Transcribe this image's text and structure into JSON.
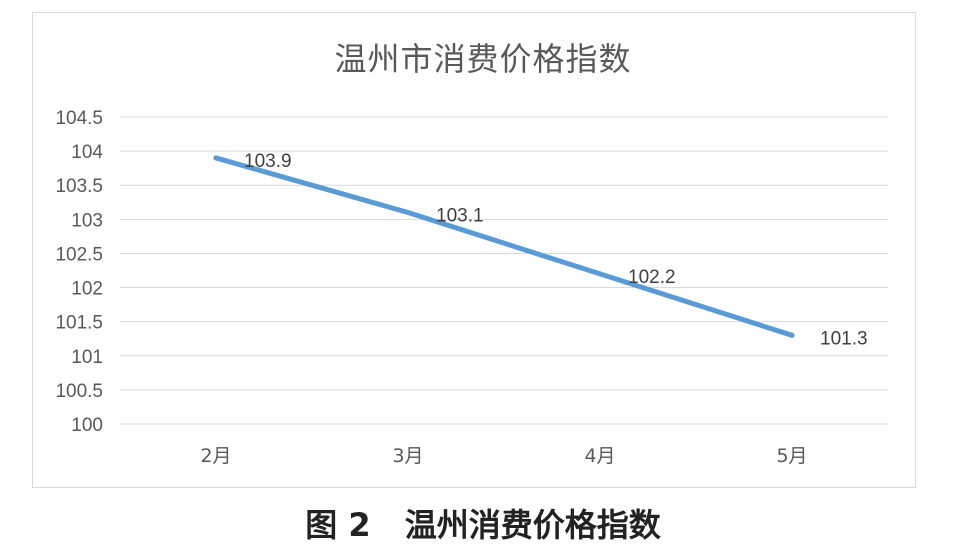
{
  "figure_caption": {
    "number": "图 2",
    "text": "温州消费价格指数"
  },
  "chart_data": {
    "type": "line",
    "title": "温州市消费价格指数",
    "xlabel": "",
    "ylabel": "",
    "categories": [
      "2月",
      "3月",
      "4月",
      "5月"
    ],
    "series": [
      {
        "values": [
          103.9,
          103.1,
          102.2,
          101.3
        ],
        "color": "#5b9bd5"
      }
    ],
    "data_labels": [
      "103.9",
      "103.1",
      "102.2",
      "101.3"
    ],
    "ylim": [
      100,
      104.5
    ],
    "yticks": [
      100,
      100.5,
      101,
      101.5,
      102,
      102.5,
      103,
      103.5,
      104,
      104.5
    ],
    "ytick_labels": [
      "100",
      "100.5",
      "101",
      "101.5",
      "102",
      "102.5",
      "103",
      "103.5",
      "104",
      "104.5"
    ],
    "grid": true,
    "legend": "none"
  }
}
